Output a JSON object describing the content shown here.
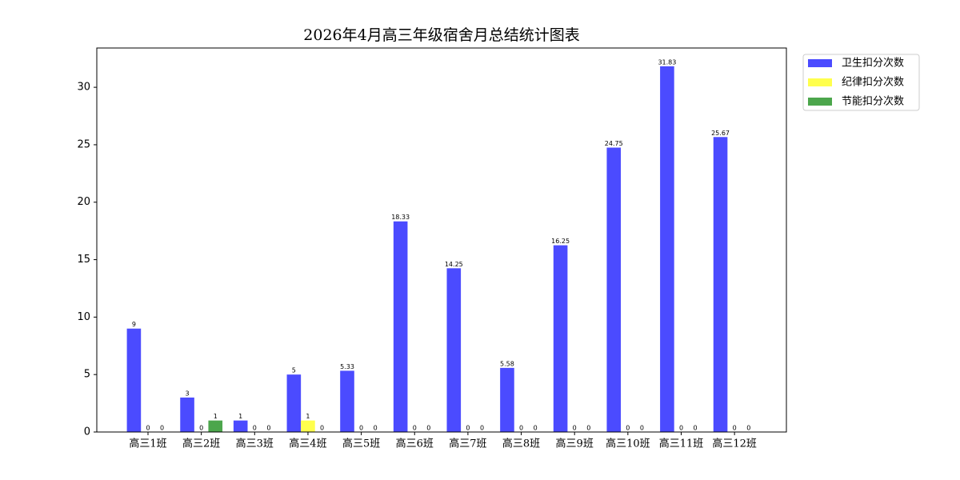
{
  "chart_data": {
    "type": "bar",
    "title": "2026年4月高三年级宿舍月总结统计图表",
    "categories": [
      "高三1班",
      "高三2班",
      "高三3班",
      "高三4班",
      "高三5班",
      "高三6班",
      "高三7班",
      "高三8班",
      "高三9班",
      "高三10班",
      "高三11班",
      "高三12班"
    ],
    "series": [
      {
        "name": "卫生扣分次数",
        "color": "#4b4bff",
        "values": [
          9,
          3,
          1,
          5,
          5.33,
          18.33,
          14.25,
          5.58,
          16.25,
          24.75,
          31.83,
          25.67
        ]
      },
      {
        "name": "纪律扣分次数",
        "color": "#ffff4d",
        "values": [
          0,
          0,
          0,
          1,
          0,
          0,
          0,
          0,
          0,
          0,
          0,
          0
        ]
      },
      {
        "name": "节能扣分次数",
        "color": "#4ca64c",
        "values": [
          0,
          1,
          0,
          0,
          0,
          0,
          0,
          0,
          0,
          0,
          0,
          0
        ]
      }
    ],
    "ylim": [
      0,
      33.42
    ],
    "yticks": [
      0,
      5,
      10,
      15,
      20,
      25,
      30
    ],
    "legend": "upper right outside"
  }
}
